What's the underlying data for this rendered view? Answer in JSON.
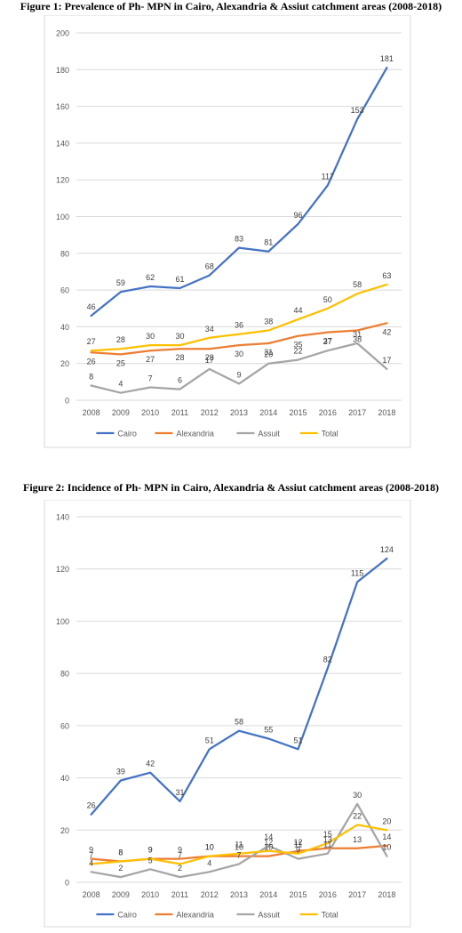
{
  "colors": {
    "Cairo": "#4472c4",
    "Alexandria": "#ed7d31",
    "Assuit": "#a5a5a5",
    "Total": "#ffc000",
    "grid": "#d9d9d9",
    "axis_text": "#595959"
  },
  "chart_data": [
    {
      "type": "line",
      "title": "Figure 1: Prevalence of Ph- MPN in Cairo, Alexandria & Assiut catchment areas (2008-2018)",
      "xlabel": "",
      "ylabel": "",
      "categories": [
        "2008",
        "2009",
        "2010",
        "2011",
        "2012",
        "2013",
        "2014",
        "2015",
        "2016",
        "2017",
        "2018"
      ],
      "ylim": [
        0,
        200
      ],
      "yticks": [
        0,
        20,
        40,
        60,
        80,
        100,
        120,
        140,
        160,
        180,
        200
      ],
      "grid": true,
      "legend_position": "bottom",
      "series": [
        {
          "name": "Cairo",
          "values": [
            46,
            59,
            62,
            61,
            68,
            83,
            81,
            96,
            117,
            153,
            181
          ]
        },
        {
          "name": "Alexandria",
          "values": [
            26,
            25,
            27,
            28,
            28,
            30,
            31,
            35,
            37,
            38,
            42
          ]
        },
        {
          "name": "Assuit",
          "values": [
            8,
            4,
            7,
            6,
            17,
            9,
            20,
            22,
            27,
            31,
            17
          ]
        },
        {
          "name": "Total",
          "values": [
            27,
            28,
            30,
            30,
            34,
            36,
            38,
            44,
            50,
            58,
            63
          ]
        }
      ]
    },
    {
      "type": "line",
      "title": "Figure 2: Incidence of Ph- MPN in Cairo, Alexandria & Assiut catchment areas (2008-2018)",
      "xlabel": "",
      "ylabel": "",
      "categories": [
        "2008",
        "2009",
        "2010",
        "2011",
        "2012",
        "2013",
        "2014",
        "2015",
        "2016",
        "2017",
        "2018"
      ],
      "ylim": [
        0,
        140
      ],
      "yticks": [
        0,
        20,
        40,
        60,
        80,
        100,
        120,
        140
      ],
      "grid": true,
      "legend_position": "bottom",
      "series": [
        {
          "name": "Cairo",
          "values": [
            26,
            39,
            42,
            31,
            51,
            58,
            55,
            51,
            82,
            115,
            124
          ]
        },
        {
          "name": "Alexandria",
          "values": [
            9,
            8,
            9,
            9,
            10,
            10,
            10,
            12,
            13,
            13,
            14
          ]
        },
        {
          "name": "Assuit",
          "values": [
            4,
            2,
            5,
            2,
            4,
            7,
            14,
            9,
            11,
            30,
            10
          ]
        },
        {
          "name": "Total",
          "values": [
            7,
            8,
            9,
            7,
            10,
            11,
            12,
            11,
            15,
            22,
            20
          ]
        }
      ]
    }
  ]
}
